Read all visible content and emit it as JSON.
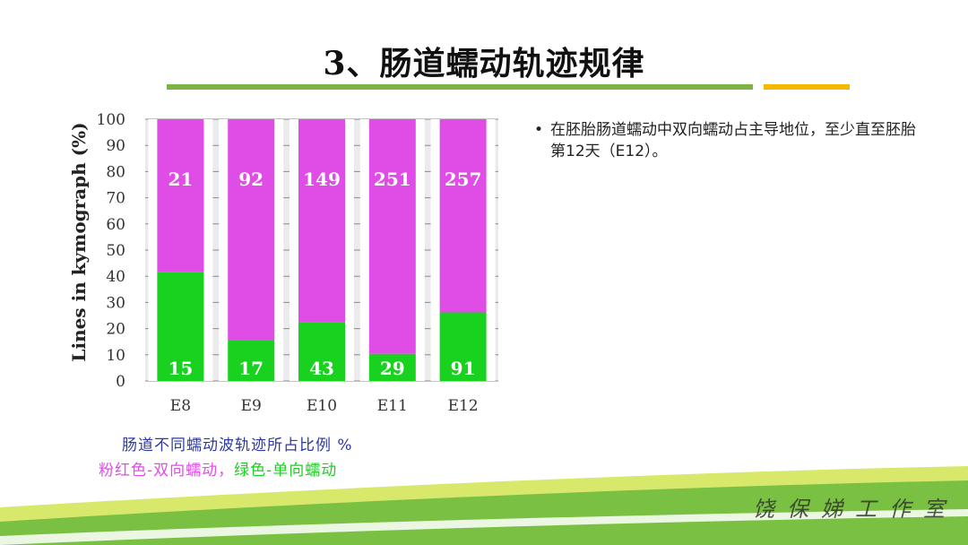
{
  "slide": {
    "title": "3、肠道蠕动轨迹规律",
    "bullet_text": "在胚胎肠道蠕动中双向蠕动占主导地位，至少直至胚胎第12天（E12）。",
    "caption_line1": "肠道不同蠕动波轨迹所占比例 %",
    "caption_line2_pink": "粉红色-双向蠕动，",
    "caption_line2_green": "绿色-单向蠕动",
    "signature": "饶保娣工作室"
  },
  "colors": {
    "bidirectional": "#e04de6",
    "unidirectional": "#19d11f",
    "caption_blue": "#2e3a9e",
    "accent_green": "#7cb342",
    "accent_orange": "#f5b700"
  },
  "chart_data": {
    "type": "bar",
    "stacked": true,
    "categories": [
      "E8",
      "E9",
      "E10",
      "E11",
      "E12"
    ],
    "series": [
      {
        "name": "单向蠕动",
        "values": [
          41.7,
          15.6,
          22.4,
          10.4,
          26.2
        ],
        "labels": [
          "15",
          "17",
          "43",
          "29",
          "91"
        ],
        "color": "#19d11f"
      },
      {
        "name": "双向蠕动",
        "values": [
          58.3,
          84.4,
          77.6,
          89.6,
          73.8
        ],
        "labels": [
          "21",
          "92",
          "149",
          "251",
          "257"
        ],
        "color": "#e04de6"
      }
    ],
    "ylabel": "Lines in kymograph (%)",
    "xlabel": "",
    "ylim": [
      0,
      100
    ],
    "yticks": [
      0,
      10,
      20,
      30,
      40,
      50,
      60,
      70,
      80,
      90,
      100
    ],
    "grid": true
  }
}
